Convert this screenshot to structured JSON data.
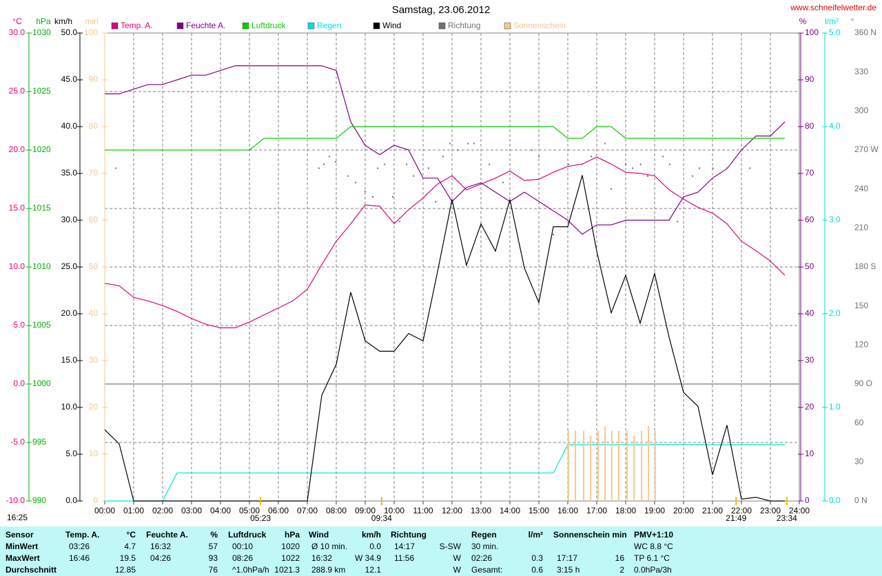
{
  "chart_data": {
    "type": "line",
    "title": "Samstag, 23.06.2012",
    "source": "www.schneifelwetter.de",
    "generated": "16:25",
    "annotations": [
      "05:23",
      "09:34",
      "21:49",
      "23:34"
    ],
    "xlim": [
      0,
      24
    ],
    "xticks": [
      {
        "value": 0,
        "label": "00:00"
      },
      {
        "value": 1,
        "label": "01:00"
      },
      {
        "value": 2,
        "label": "02:00"
      },
      {
        "value": 3,
        "label": "03:00"
      },
      {
        "value": 4,
        "label": "04:00"
      },
      {
        "value": 5,
        "label": "05:00"
      },
      {
        "value": 6,
        "label": "06:00"
      },
      {
        "value": 7,
        "label": "07:00"
      },
      {
        "value": 8,
        "label": "08:00"
      },
      {
        "value": 9,
        "label": "09:00"
      },
      {
        "value": 10,
        "label": "10:00"
      },
      {
        "value": 11,
        "label": "11:00"
      },
      {
        "value": 12,
        "label": "12:00"
      },
      {
        "value": 13,
        "label": "13:00"
      },
      {
        "value": 14,
        "label": "14:00"
      },
      {
        "value": 15,
        "label": "15:00"
      },
      {
        "value": 16,
        "label": "16:00"
      },
      {
        "value": 17,
        "label": "17:00"
      },
      {
        "value": 18,
        "label": "18:00"
      },
      {
        "value": 19,
        "label": "19:00"
      },
      {
        "value": 20,
        "label": "20:00"
      },
      {
        "value": 21,
        "label": "21:00"
      },
      {
        "value": 22,
        "label": "22:00"
      },
      {
        "value": 23,
        "label": "23:00"
      },
      {
        "value": 24,
        "label": "24:00"
      }
    ],
    "grid": true,
    "axes": [
      {
        "label": "°C",
        "color": "#e0007f",
        "side": "left",
        "lim": [
          -10,
          30
        ],
        "ticks": [
          {
            "value": -10,
            "label": "-10.0"
          },
          {
            "value": -5,
            "label": "-5.0"
          },
          {
            "value": 0,
            "label": "0.0"
          },
          {
            "value": 5,
            "label": "5.0"
          },
          {
            "value": 10,
            "label": "10.0"
          },
          {
            "value": 15,
            "label": "15.0"
          },
          {
            "value": 20,
            "label": "20.0"
          },
          {
            "value": 25,
            "label": "25.0"
          },
          {
            "value": 30,
            "label": "30.0"
          }
        ]
      },
      {
        "label": "hPa",
        "color": "#00b000",
        "side": "left",
        "lim": [
          990,
          1030
        ],
        "ticks": [
          990,
          995,
          1000,
          1005,
          1010,
          1015,
          1020,
          1025,
          1030
        ]
      },
      {
        "label": "km/h",
        "color": "#000000",
        "side": "left",
        "lim": [
          0,
          50
        ],
        "ticks": [
          {
            "value": 0,
            "label": "0.0"
          },
          {
            "value": 5,
            "label": "5.0"
          },
          {
            "value": 10,
            "label": "10.0"
          },
          {
            "value": 15,
            "label": "15.0"
          },
          {
            "value": 20,
            "label": "20.0"
          },
          {
            "value": 25,
            "label": "25.0"
          },
          {
            "value": 30,
            "label": "30.0"
          },
          {
            "value": 35,
            "label": "35.0"
          },
          {
            "value": 40,
            "label": "40.0"
          },
          {
            "value": 45,
            "label": "45.0"
          },
          {
            "value": 50,
            "label": "50.0"
          }
        ]
      },
      {
        "label": "min",
        "color": "#f5c78e",
        "side": "left",
        "lim": [
          0,
          100
        ],
        "ticks": [
          0,
          10,
          20,
          30,
          40,
          50,
          60,
          70,
          80,
          90,
          100
        ]
      },
      {
        "label": "%",
        "color": "#800080",
        "side": "right",
        "lim": [
          0,
          100
        ],
        "ticks": [
          0,
          10,
          20,
          30,
          40,
          50,
          60,
          70,
          80,
          90,
          100
        ]
      },
      {
        "label": "l/m²",
        "color": "#00d8d8",
        "side": "right",
        "lim": [
          0,
          5
        ],
        "ticks": [
          {
            "value": 0,
            "label": "0.0"
          },
          {
            "value": 1,
            "label": "1.0"
          },
          {
            "value": 2,
            "label": "2.0"
          },
          {
            "value": 3,
            "label": "3.0"
          },
          {
            "value": 4,
            "label": "4.0"
          },
          {
            "value": 5,
            "label": "5.0"
          }
        ]
      },
      {
        "label": "°",
        "color": "#707070",
        "side": "right",
        "lim": [
          0,
          360
        ],
        "ticks": [
          {
            "value": 0,
            "label": "0 N"
          },
          30,
          60,
          {
            "value": 90,
            "label": "90 O"
          },
          120,
          150,
          {
            "value": 180,
            "label": "180 S"
          },
          210,
          240,
          {
            "value": 270,
            "label": "270 W"
          },
          300,
          330,
          {
            "value": 360,
            "label": "360 N"
          }
        ]
      }
    ],
    "x": [
      0,
      0.5,
      1,
      1.5,
      2,
      2.5,
      3,
      3.5,
      4,
      4.5,
      5,
      5.5,
      6,
      6.5,
      7,
      7.5,
      8,
      8.5,
      9,
      9.5,
      10,
      10.5,
      11,
      11.5,
      12,
      12.5,
      13,
      13.5,
      14,
      14.5,
      15,
      15.5,
      16,
      16.5,
      17,
      17.5,
      18,
      18.5,
      19,
      19.5,
      20,
      20.5,
      21,
      21.5,
      22,
      22.5,
      23,
      23.5
    ],
    "series": [
      {
        "name": "Temp. A.",
        "color": "#e0007f",
        "axis": 0,
        "type": "line",
        "values": [
          8.6,
          8.4,
          7.4,
          7.1,
          6.7,
          6.2,
          5.6,
          5.1,
          4.8,
          4.8,
          5.3,
          5.9,
          6.5,
          7.1,
          8.1,
          10.2,
          12.2,
          13.7,
          15.3,
          15.2,
          13.7,
          14.9,
          15.9,
          17.1,
          17.8,
          16.6,
          17.1,
          17.6,
          18.2,
          17.4,
          17.5,
          18.1,
          18.6,
          18.8,
          19.4,
          18.8,
          18.1,
          18.0,
          17.8,
          16.6,
          15.8,
          15.1,
          14.6,
          13.7,
          12.2,
          11.4,
          10.5,
          9.3
        ]
      },
      {
        "name": "Feuchte A.",
        "color": "#800080",
        "axis": 4,
        "type": "line",
        "values": [
          87,
          87,
          88,
          89,
          89,
          90,
          91,
          91,
          92,
          93,
          93,
          93,
          93,
          93,
          93,
          93,
          92,
          81,
          76,
          74,
          76,
          75,
          69,
          69,
          64,
          67,
          68,
          66,
          64,
          66,
          64,
          62,
          60,
          57,
          59,
          59,
          60,
          60,
          60,
          60,
          65,
          66,
          69,
          71,
          75,
          78,
          78,
          81
        ]
      },
      {
        "name": "Luftdruck",
        "color": "#00d000",
        "axis": 1,
        "type": "line",
        "values": [
          1020,
          1020,
          1020,
          1020,
          1020,
          1020,
          1020,
          1020,
          1020,
          1020,
          1020,
          1021,
          1021,
          1021,
          1021,
          1021,
          1021,
          1022,
          1022,
          1022,
          1022,
          1022,
          1022,
          1022,
          1022,
          1022,
          1022,
          1022,
          1022,
          1022,
          1022,
          1022,
          1021,
          1021,
          1022,
          1022,
          1021,
          1021,
          1021,
          1021,
          1021,
          1021,
          1021,
          1021,
          1021,
          1021,
          1021,
          1021
        ]
      },
      {
        "name": "Regen",
        "color": "#00e0e0",
        "axis": 5,
        "type": "line",
        "values": [
          0,
          0,
          0,
          0,
          0,
          0.3,
          0.3,
          0.3,
          0.3,
          0.3,
          0.3,
          0.3,
          0.3,
          0.3,
          0.3,
          0.3,
          0.3,
          0.3,
          0.3,
          0.3,
          0.3,
          0.3,
          0.3,
          0.3,
          0.3,
          0.3,
          0.3,
          0.3,
          0.3,
          0.3,
          0.3,
          0.3,
          0.6,
          0.6,
          0.6,
          0.6,
          0.6,
          0.6,
          0.6,
          0.6,
          0.6,
          0.6,
          0.6,
          0.6,
          0.6,
          0.6,
          0.6,
          0.6
        ]
      },
      {
        "name": "Wind",
        "color": "#000000",
        "axis": 2,
        "type": "line",
        "values": [
          7.6,
          6.1,
          0,
          0,
          0,
          0,
          0,
          0,
          0,
          0,
          0,
          0,
          0,
          0,
          0,
          11.3,
          14.6,
          22.3,
          17.1,
          16.0,
          16.0,
          17.9,
          17.1,
          24.5,
          32.2,
          25.2,
          29.6,
          26.7,
          32.2,
          24.9,
          21.2,
          29.3,
          29.3,
          34.8,
          26.7,
          20.1,
          24.1,
          19.0,
          24.3,
          17.5,
          11.6,
          10.1,
          2.8,
          8.1,
          0.2,
          0.4,
          0,
          0
        ]
      },
      {
        "name": "Richtung",
        "color": "#707070",
        "axis": 6,
        "type": "scatter",
        "x": [
          0.38,
          7.4,
          7.57,
          7.76,
          7.98,
          8.4,
          8.67,
          9.0,
          9.26,
          9.43,
          9.67,
          9.95,
          10.19,
          10.43,
          10.67,
          11.19,
          11.43,
          11.69,
          11.93,
          12.19,
          12.55,
          12.76,
          13.29,
          13.76,
          14.29,
          14.76,
          15.0,
          15.5,
          16.02,
          16.5,
          16.81,
          17.29,
          17.5,
          18.0,
          18.24,
          18.52,
          18.76,
          19.29,
          19.52,
          19.79,
          20.31,
          20.55,
          21.02,
          21.5,
          22.29
        ],
        "values": [
          256,
          256,
          259,
          265,
          261,
          250,
          245,
          238,
          234,
          256,
          259,
          234,
          215,
          259,
          250,
          256,
          230,
          265,
          275,
          270,
          275,
          275,
          259,
          245,
          200,
          270,
          265,
          205,
          259,
          259,
          265,
          275,
          240,
          259,
          256,
          259,
          250,
          265,
          259,
          215,
          250,
          256,
          256,
          256,
          256
        ]
      },
      {
        "name": "Sonnenschein",
        "color": "#f5c78e",
        "axis": 3,
        "type": "bar",
        "x": [
          16.02,
          16.26,
          16.55,
          16.79,
          17.05,
          17.29,
          17.52,
          17.76,
          18.05,
          18.29,
          18.55,
          18.79,
          19.02
        ],
        "values": [
          15,
          15,
          15,
          14,
          15,
          16,
          15,
          15,
          15,
          14,
          15,
          16,
          15
        ]
      }
    ]
  },
  "table": {
    "header": [
      "Sensor",
      "Temp. A.",
      "°C",
      "Feuchte A.",
      "%",
      "Luftdruck",
      "hPa",
      "Wind",
      "km/h",
      "Richtung",
      "Regen",
      "l/m²",
      "Sonnenschein min",
      "PMV+1:10"
    ],
    "rows": [
      {
        "label": "MinWert",
        "cells": [
          [
            "03:26",
            "4.7"
          ],
          [
            "16:32",
            "57"
          ],
          [
            "00:10",
            "1020"
          ],
          [
            "Ø 10 min.",
            "0.0"
          ],
          [
            "14:17",
            "S-SW"
          ],
          [
            "30 min.",
            null
          ],
          [
            null,
            null
          ],
          [
            "WC 8.8 °C",
            null
          ]
        ]
      },
      {
        "label": "MaxWert",
        "cells": [
          [
            "16:46",
            "19.5"
          ],
          [
            "04:26",
            "93"
          ],
          [
            "08:26",
            "1022"
          ],
          [
            "16:32",
            "W 34.9"
          ],
          [
            "11:56",
            "W"
          ],
          [
            "02:26",
            "0.3"
          ],
          [
            "17:17",
            "16"
          ],
          [
            "TP 6.1 °C",
            null
          ]
        ]
      },
      {
        "label": "Durchschnitt",
        "cells": [
          [
            null,
            "12.85"
          ],
          [
            null,
            "76"
          ],
          [
            "^1.0hPa/h",
            "1021.3"
          ],
          [
            "288.9 km",
            "12.1"
          ],
          [
            null,
            "W"
          ],
          [
            "Gesamt:",
            "0.6"
          ],
          [
            "3:15 h",
            "2"
          ],
          [
            "0.0hPa/3h",
            null
          ]
        ]
      }
    ]
  }
}
